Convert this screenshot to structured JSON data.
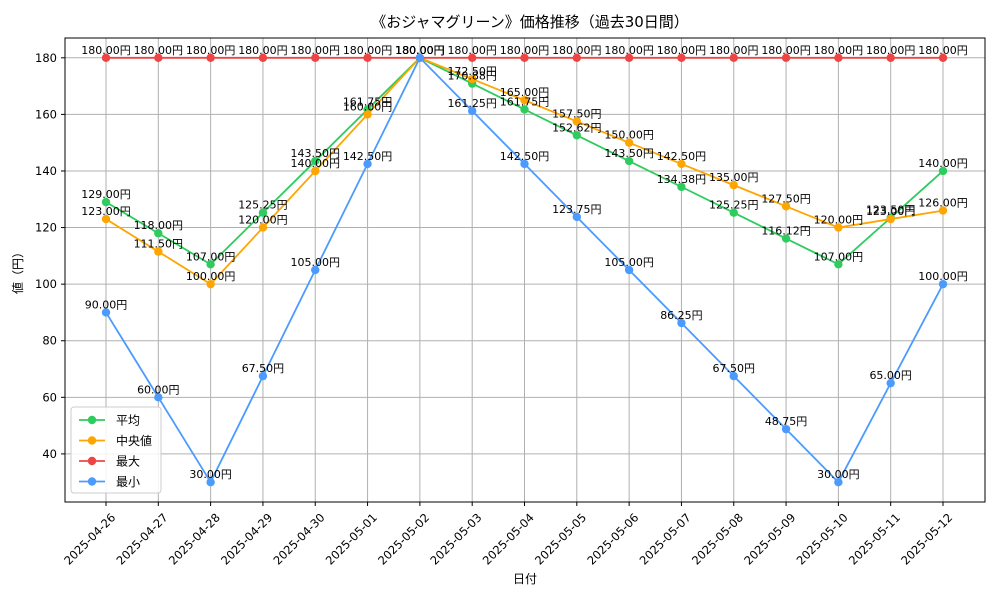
{
  "chart_data": {
    "type": "line",
    "title": "《おジャマグリーン》価格推移（過去30日間）",
    "xlabel": "日付",
    "ylabel": "値（円）",
    "ylim": [
      23,
      187
    ],
    "yticks": [
      40,
      60,
      80,
      100,
      120,
      140,
      160,
      180
    ],
    "grid": true,
    "legend_position": "lower-left",
    "value_suffix": "円",
    "categories": [
      "2025-04-26",
      "2025-04-27",
      "2025-04-28",
      "2025-04-29",
      "2025-04-30",
      "2025-05-01",
      "2025-05-02",
      "2025-05-03",
      "2025-05-04",
      "2025-05-05",
      "2025-05-06",
      "2025-05-07",
      "2025-05-08",
      "2025-05-09",
      "2025-05-10",
      "2025-05-11",
      "2025-05-12"
    ],
    "series": [
      {
        "name": "平均",
        "color": "#2ecc5e",
        "values": [
          129.0,
          118.0,
          107.0,
          125.25,
          143.5,
          161.75,
          180.0,
          170.88,
          161.75,
          152.62,
          143.5,
          134.38,
          125.25,
          116.12,
          107.0,
          123.5,
          140.0
        ]
      },
      {
        "name": "中央値",
        "color": "#ffa500",
        "values": [
          123.0,
          111.5,
          100.0,
          120.0,
          140.0,
          160.0,
          180.0,
          172.5,
          165.0,
          157.5,
          150.0,
          142.5,
          135.0,
          127.5,
          120.0,
          123.0,
          126.0
        ]
      },
      {
        "name": "最大",
        "color": "#ef4444",
        "values": [
          180.0,
          180.0,
          180.0,
          180.0,
          180.0,
          180.0,
          180.0,
          180.0,
          180.0,
          180.0,
          180.0,
          180.0,
          180.0,
          180.0,
          180.0,
          180.0,
          180.0
        ]
      },
      {
        "name": "最小",
        "color": "#4b9bff",
        "values": [
          90.0,
          60.0,
          30.0,
          67.5,
          105.0,
          142.5,
          180.0,
          161.25,
          142.5,
          123.75,
          105.0,
          86.25,
          67.5,
          48.75,
          30.0,
          65.0,
          100.0
        ]
      }
    ]
  }
}
